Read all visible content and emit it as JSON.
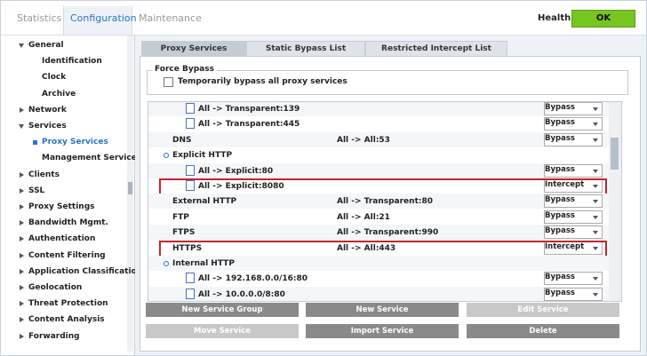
{
  "header": {
    "tabs": [
      "Statistics",
      "Configuration",
      "Maintenance"
    ],
    "health_label": "Health:",
    "health_status": "OK"
  },
  "sidebar": {
    "items": [
      "General",
      "Identification",
      "Clock",
      "Archive",
      "Network",
      "Services",
      "Proxy Services",
      "Management Services",
      "Clients",
      "SSL",
      "Proxy Settings",
      "Bandwidth Mgmt.",
      "Authentication",
      "Content Filtering",
      "Application Classification",
      "Geolocation",
      "Threat Protection",
      "Content Analysis",
      "Forwarding"
    ]
  },
  "main": {
    "tabs": [
      "Proxy Services",
      "Static Bypass List",
      "Restricted Intercept List"
    ],
    "force_bypass": {
      "legend": "Force Bypass",
      "checkbox": "Temporarily bypass all proxy services"
    },
    "table": {
      "rows": [
        {
          "listener": "All -> Transparent:139",
          "action": "Bypass"
        },
        {
          "listener": "All -> Transparent:445",
          "action": "Bypass"
        },
        {
          "name": "DNS",
          "listener": "All -> All:53",
          "action": "Bypass"
        },
        {
          "name": "Explicit HTTP"
        },
        {
          "listener": "All -> Explicit:80",
          "action": "Bypass"
        },
        {
          "listener": "All -> Explicit:8080",
          "action": "Intercept"
        },
        {
          "name": "External HTTP",
          "listener": "All -> Transparent:80",
          "action": "Bypass"
        },
        {
          "name": "FTP",
          "listener": "All -> All:21",
          "action": "Bypass"
        },
        {
          "name": "FTPS",
          "listener": "All -> Transparent:990",
          "action": "Bypass"
        },
        {
          "name": "HTTPS",
          "listener": "All -> All:443",
          "action": "Intercept"
        },
        {
          "name": "Internal HTTP"
        },
        {
          "listener": "All -> 192.168.0.0/16:80",
          "action": "Bypass"
        },
        {
          "listener": "All -> 10.0.0.0/8:80",
          "action": "Bypass"
        }
      ]
    },
    "buttons": [
      "New Service Group",
      "New Service",
      "Edit Service",
      "Move Service",
      "Import Service",
      "Delete"
    ]
  }
}
